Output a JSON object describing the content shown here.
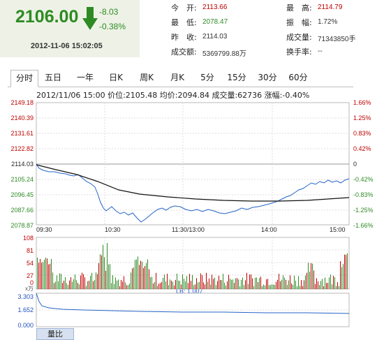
{
  "quote": {
    "price": "2106.00",
    "change": "-8.03",
    "change_pct": "-0.38%",
    "datetime": "2012-11-06 15:02:05",
    "color_down": "#2e8b24",
    "color_up": "#c00000"
  },
  "stats": {
    "open_label": "今　开:",
    "open": "2113.66",
    "high_label": "最　高:",
    "high": "2114.79",
    "low_label": "最　低:",
    "low": "2078.47",
    "amp_label": "振　幅:",
    "amp": "1.72%",
    "prev_label": "昨　收:",
    "prev": "2114.03",
    "vol_label": "成交量:",
    "vol": "71343850手",
    "amt_label": "成交额:",
    "amt": "5369799.88万",
    "turn_label": "换手率:",
    "turn": "--"
  },
  "tabs": [
    "分时",
    "五日",
    "一年",
    "日K",
    "周K",
    "月K",
    "5分",
    "15分",
    "30分",
    "60分"
  ],
  "active_tab": 0,
  "info_line": "2012/11/06 15:00  价位:2105.48 均价:2094.84 成交量:62736 涨幅:-0.40%",
  "price_axis_left": [
    "2149.18",
    "2140.39",
    "2131.61",
    "2122.82",
    "2114.03",
    "2105.24",
    "2096.45",
    "2087.66",
    "2078.87"
  ],
  "price_axis_right": [
    "1.66%",
    "1.25%",
    "0.83%",
    "0.42%",
    "0",
    "-0.42%",
    "-0.83%",
    "-1.25%",
    "-1.66%"
  ],
  "time_axis": [
    "09:30",
    "10:30",
    "11:30/13:00",
    "14:00",
    "15:00"
  ],
  "volume_axis": [
    "108",
    "81",
    "54",
    "27",
    "0"
  ],
  "volume_unit": "x万",
  "lb_axis": [
    "3.303",
    "1.652",
    "0.000"
  ],
  "lb_label": "LB: 1.007",
  "lb_tab": "量比"
}
